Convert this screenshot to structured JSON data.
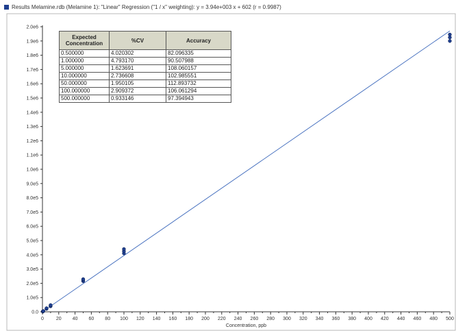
{
  "title": "Results Melamine.rdb (Melamine 1): \"Linear\" Regression (\"1 / x\" weighting): y = 3.94e+003 x + 602 (r = 0.9987)",
  "colors": {
    "series": "#1f3f8f",
    "fit_line": "#4a73c0",
    "table_header": "#d8d8c8"
  },
  "table": {
    "headers": [
      "Expected Concentration",
      "%CV",
      "Accuracy"
    ],
    "rows": [
      [
        "0.500000",
        "4.020302",
        "82.096335"
      ],
      [
        "1.000000",
        "4.793170",
        "90.507988"
      ],
      [
        "5.000000",
        "1.623691",
        "108.060157"
      ],
      [
        "10.000000",
        "2.736608",
        "102.985551"
      ],
      [
        "50.000000",
        "1.950105",
        "112.893732"
      ],
      [
        "100.000000",
        "2.909372",
        "106.061294"
      ],
      [
        "500.000000",
        "0.933146",
        "97.394943"
      ]
    ]
  },
  "chart_data": {
    "type": "scatter",
    "title": "Results Melamine.rdb (Melamine 1): \"Linear\" Regression (\"1 / x\" weighting): y = 3.94e+003 x + 602 (r = 0.9987)",
    "xlabel": "Concentration, ppb",
    "ylabel": "",
    "xlim": [
      0,
      500
    ],
    "ylim": [
      0,
      2000000
    ],
    "x_ticks": [
      0,
      20,
      40,
      60,
      80,
      100,
      120,
      140,
      160,
      180,
      200,
      220,
      240,
      260,
      280,
      300,
      320,
      340,
      360,
      380,
      400,
      420,
      440,
      460,
      480,
      500
    ],
    "y_ticks": [
      0,
      100000,
      200000,
      300000,
      400000,
      500000,
      600000,
      700000,
      800000,
      900000,
      1000000,
      1100000,
      1200000,
      1300000,
      1400000,
      1500000,
      1600000,
      1700000,
      1800000,
      1900000,
      2000000
    ],
    "y_tick_labels": [
      "0.0",
      "1.0e5",
      "2.0e5",
      "3.0e5",
      "4.0e5",
      "5.0e5",
      "6.0e5",
      "7.0e5",
      "8.0e5",
      "9.0e5",
      "1.0e6",
      "1.1e6",
      "1.2e6",
      "1.3e6",
      "1.4e6",
      "1.5e6",
      "1.6e6",
      "1.7e6",
      "1.8e6",
      "1.9e6",
      "2.0e6"
    ],
    "fit": {
      "slope": 3940,
      "intercept": 602
    },
    "grid": false,
    "points": [
      {
        "x": 0.5,
        "y": 1800
      },
      {
        "x": 0.5,
        "y": 2600
      },
      {
        "x": 0.5,
        "y": 3400
      },
      {
        "x": 1,
        "y": 3900
      },
      {
        "x": 1,
        "y": 4500
      },
      {
        "x": 1,
        "y": 5300
      },
      {
        "x": 5,
        "y": 21000
      },
      {
        "x": 5,
        "y": 23000
      },
      {
        "x": 5,
        "y": 25000
      },
      {
        "x": 10,
        "y": 39000
      },
      {
        "x": 10,
        "y": 43000
      },
      {
        "x": 10,
        "y": 47000
      },
      {
        "x": 50,
        "y": 215000
      },
      {
        "x": 50,
        "y": 222000
      },
      {
        "x": 50,
        "y": 229000
      },
      {
        "x": 100,
        "y": 410000
      },
      {
        "x": 100,
        "y": 425000
      },
      {
        "x": 100,
        "y": 440000
      },
      {
        "x": 500,
        "y": 1900000
      },
      {
        "x": 500,
        "y": 1925000
      },
      {
        "x": 500,
        "y": 1945000
      }
    ]
  }
}
